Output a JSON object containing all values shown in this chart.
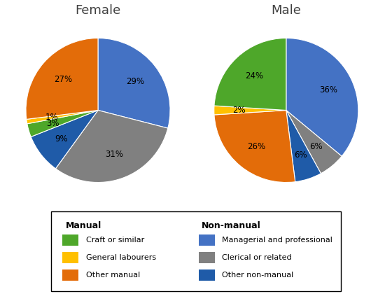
{
  "female_title": "Female",
  "male_title": "Male",
  "female_values": [
    29,
    31,
    9,
    3,
    1,
    27
  ],
  "male_values": [
    36,
    6,
    6,
    26,
    2,
    24
  ],
  "colors_female": [
    "#4472C4",
    "#808080",
    "#1F5BA8",
    "#4EA72A",
    "#FFC000",
    "#E36C09"
  ],
  "colors_male": [
    "#4472C4",
    "#808080",
    "#1F5BA8",
    "#E36C09",
    "#FFC000",
    "#4EA72A"
  ],
  "female_labels": [
    "29%",
    "31%",
    "9%",
    "3%",
    "1%",
    "27%"
  ],
  "male_labels": [
    "36%",
    "6%",
    "6%",
    "26%",
    "2%",
    "24%"
  ],
  "legend_manual_title": "Manual",
  "legend_nonmanual_title": "Non-manual",
  "legend_items_manual": [
    "Craft or similar",
    "General labourers",
    "Other manual"
  ],
  "legend_items_nonmanual": [
    "Managerial and professional",
    "Clerical or related",
    "Other non-manual"
  ],
  "legend_colors_manual": [
    "#4EA72A",
    "#FFC000",
    "#E36C09"
  ],
  "legend_colors_nonmanual": [
    "#4472C4",
    "#808080",
    "#1F5BA8"
  ],
  "background_color": "#FFFFFF",
  "startangle_female": 90,
  "startangle_male": 90
}
